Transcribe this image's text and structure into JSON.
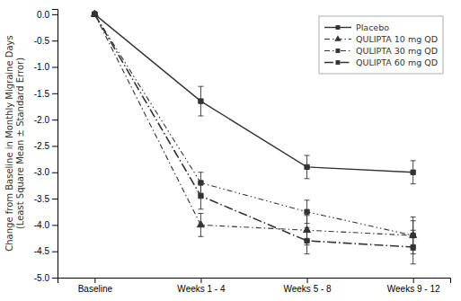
{
  "chart_data": {
    "type": "line",
    "ylabel": "Change from Baseline in Monthly Migraine Days\n(Least Square Mean ± Standard Error)",
    "categories": [
      "Baseline",
      "Weeks 1 - 4",
      "Weeks 5 - 8",
      "Weeks 9 - 12"
    ],
    "ylim": [
      -5.0,
      0.1
    ],
    "yticks": [
      {
        "value": 0.0,
        "label": "0.0"
      },
      -0.5,
      {
        "value": -1.0,
        "label": "-1.0"
      },
      -1.5,
      {
        "value": -2.0,
        "label": "-2.0"
      },
      -2.5,
      {
        "value": -3.0,
        "label": "-3.0"
      },
      -3.5,
      {
        "value": -4.0,
        "label": "-4.0"
      },
      -4.5,
      {
        "value": -5.0,
        "label": "-5.0"
      }
    ],
    "grid": false,
    "legend": "upper right",
    "series": [
      {
        "name": "Placebo",
        "color": "#333333",
        "marker": "square",
        "line_style": "solid",
        "values": [
          0.0,
          -1.65,
          -2.9,
          -3.0
        ],
        "errors": [
          0.0,
          0.28,
          0.22,
          0.22
        ]
      },
      {
        "name": "QULIPTA 10 mg QD",
        "color": "#333333",
        "marker": "triangle",
        "line_style": "dashdot",
        "values": [
          0.0,
          -4.0,
          -4.1,
          -4.2
        ],
        "errors": [
          0.0,
          0.22,
          0.28,
          0.35
        ]
      },
      {
        "name": "QULIPTA 30 mg QD",
        "color": "#333333",
        "marker": "square",
        "line_style": "dashdotdot",
        "values": [
          0.0,
          -3.2,
          -3.75,
          -4.2
        ],
        "errors": [
          0.0,
          0.2,
          0.22,
          0.28
        ]
      },
      {
        "name": "QULIPTA 60 mg QD",
        "color": "#333333",
        "marker": "square",
        "line_style": "longdashdot",
        "values": [
          0.0,
          -3.45,
          -4.3,
          -4.42
        ],
        "errors": [
          0.0,
          0.25,
          0.25,
          0.32
        ]
      }
    ]
  }
}
